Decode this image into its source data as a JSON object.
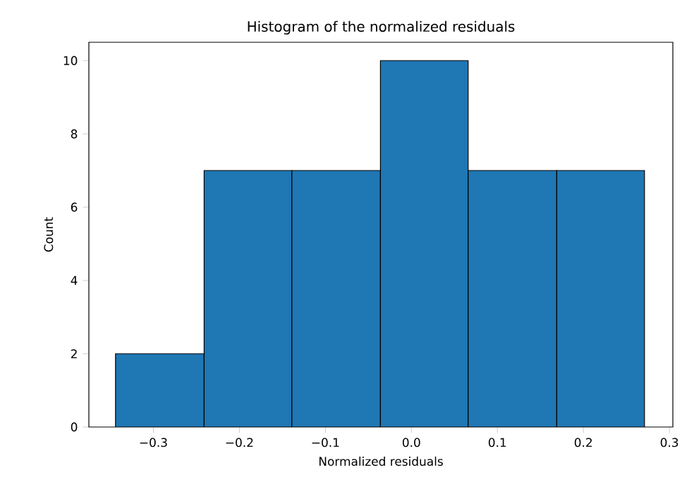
{
  "chart_data": {
    "type": "histogram",
    "title": "Histogram of the normalized residuals",
    "xlabel": "Normalized residuals",
    "ylabel": "Count",
    "bins": [
      -0.344,
      -0.241,
      -0.139,
      -0.036,
      0.066,
      0.169,
      0.271
    ],
    "values": [
      2,
      7,
      7,
      10,
      7,
      7
    ],
    "color": "#1f77b4",
    "xlim": [
      -0.375,
      0.304
    ],
    "xticks": [
      {
        "value": -0.3,
        "label": "−0.3"
      },
      {
        "value": -0.2,
        "label": "−0.2"
      },
      {
        "value": -0.1,
        "label": "−0.1"
      },
      {
        "value": 0.0,
        "label": "0.0"
      },
      {
        "value": 0.1,
        "label": "0.1"
      },
      {
        "value": 0.2,
        "label": "0.2"
      },
      {
        "value": 0.3,
        "label": "0.3"
      }
    ],
    "ylim": [
      0,
      10.5
    ],
    "yticks": [
      0,
      2,
      4,
      6,
      8,
      10
    ]
  }
}
